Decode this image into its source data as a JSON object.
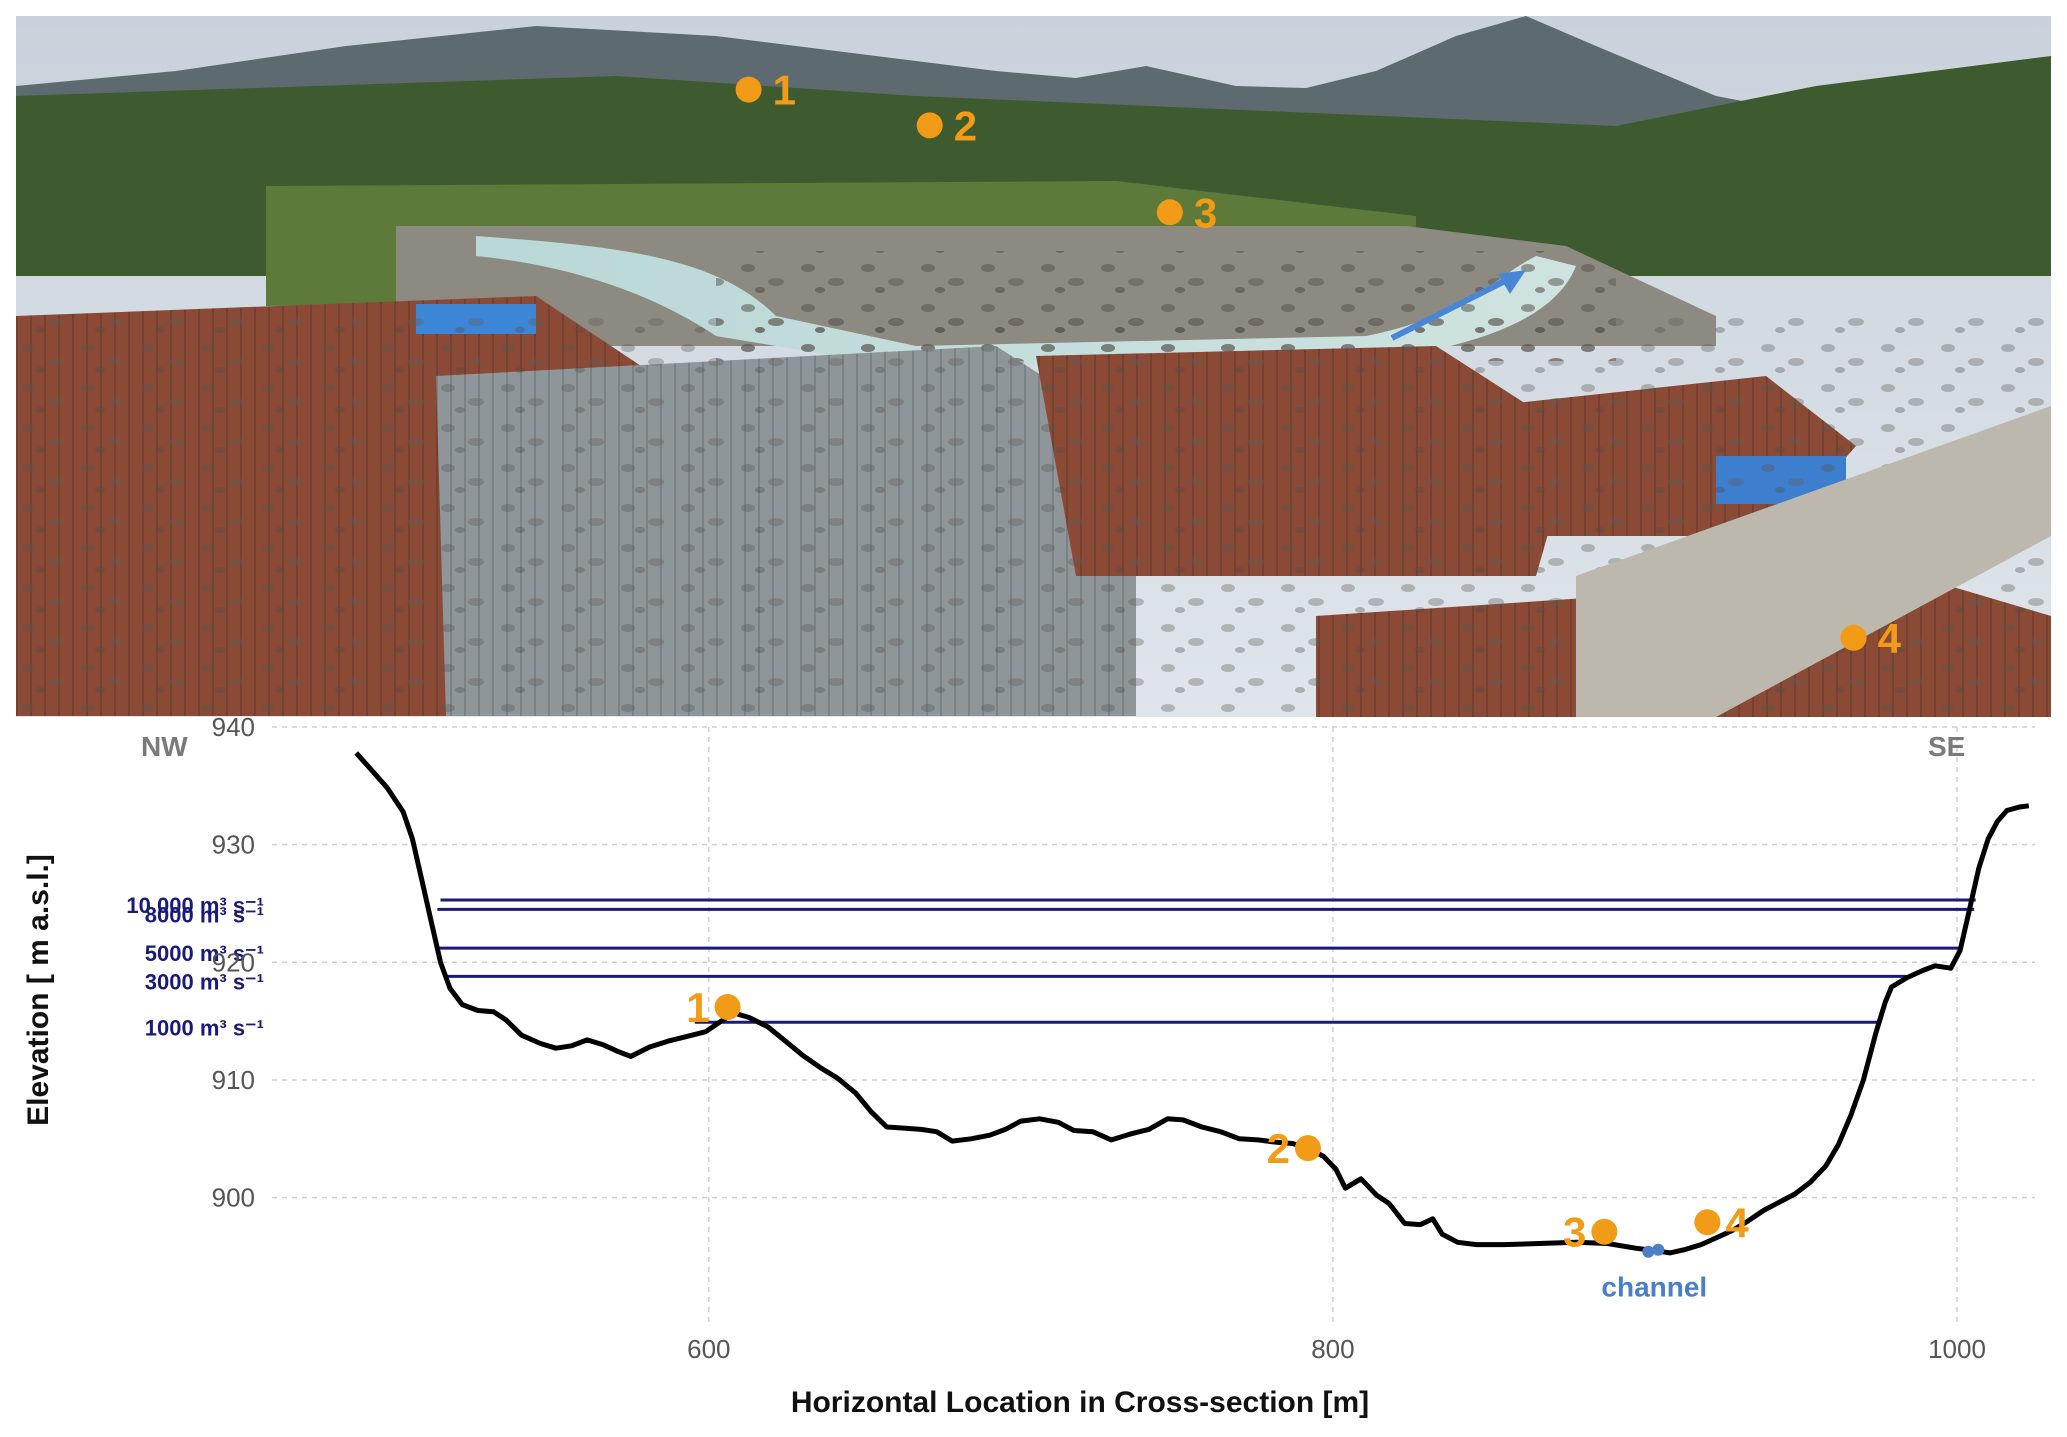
{
  "photo": {
    "markers": [
      {
        "label": "1",
        "u": 0.36,
        "v": 0.105
      },
      {
        "label": "2",
        "u": 0.449,
        "v": 0.156
      },
      {
        "label": "3",
        "u": 0.567,
        "v": 0.28
      },
      {
        "label": "4",
        "u": 0.903,
        "v": 0.887
      }
    ]
  },
  "chart_data": {
    "type": "line",
    "xlabel": "Horizontal Location in Cross-section [m]",
    "ylabel": "Elevation [ m a.s.l.]",
    "xlim": [
      460,
      1025
    ],
    "ylim": [
      889,
      940
    ],
    "xticks": [
      600,
      800,
      1000
    ],
    "yticks": [
      900,
      910,
      920,
      930,
      940
    ],
    "grid": true,
    "direction_labels": {
      "left": "NW",
      "right": "SE"
    },
    "profile": [
      [
        487,
        937.8
      ],
      [
        492,
        936.3
      ],
      [
        497,
        934.8
      ],
      [
        502,
        932.8
      ],
      [
        505,
        930.5
      ],
      [
        508,
        927.0
      ],
      [
        511,
        923.5
      ],
      [
        514,
        920.0
      ],
      [
        517,
        917.8
      ],
      [
        521,
        916.4
      ],
      [
        526,
        915.9
      ],
      [
        531,
        915.8
      ],
      [
        535,
        915.1
      ],
      [
        540,
        913.8
      ],
      [
        546,
        913.1
      ],
      [
        551,
        912.7
      ],
      [
        556,
        912.9
      ],
      [
        561,
        913.4
      ],
      [
        566,
        913.0
      ],
      [
        571,
        912.4
      ],
      [
        575,
        912.0
      ],
      [
        581,
        912.8
      ],
      [
        587,
        913.3
      ],
      [
        593,
        913.7
      ],
      [
        599,
        914.1
      ],
      [
        604,
        915.0
      ],
      [
        608,
        915.7
      ],
      [
        613,
        915.3
      ],
      [
        619,
        914.5
      ],
      [
        625,
        913.2
      ],
      [
        630,
        912.1
      ],
      [
        636,
        911.0
      ],
      [
        641,
        910.2
      ],
      [
        647,
        908.9
      ],
      [
        652,
        907.3
      ],
      [
        657,
        906.0
      ],
      [
        663,
        905.9
      ],
      [
        668,
        905.8
      ],
      [
        673,
        905.6
      ],
      [
        678,
        904.8
      ],
      [
        684,
        905.0
      ],
      [
        690,
        905.3
      ],
      [
        695,
        905.8
      ],
      [
        700,
        906.5
      ],
      [
        706,
        906.7
      ],
      [
        712,
        906.4
      ],
      [
        717,
        905.7
      ],
      [
        723,
        905.6
      ],
      [
        729,
        904.9
      ],
      [
        735,
        905.4
      ],
      [
        741,
        905.8
      ],
      [
        747,
        906.7
      ],
      [
        752,
        906.6
      ],
      [
        758,
        906.0
      ],
      [
        764,
        905.6
      ],
      [
        770,
        905.0
      ],
      [
        776,
        904.9
      ],
      [
        782,
        904.7
      ],
      [
        787,
        904.6
      ],
      [
        792,
        904.2
      ],
      [
        797,
        903.5
      ],
      [
        801,
        902.4
      ],
      [
        804,
        900.8
      ],
      [
        809,
        901.6
      ],
      [
        814,
        900.2
      ],
      [
        818,
        899.5
      ],
      [
        823,
        897.8
      ],
      [
        828,
        897.7
      ],
      [
        832,
        898.2
      ],
      [
        835,
        896.9
      ],
      [
        840,
        896.2
      ],
      [
        846,
        896.0
      ],
      [
        855,
        896.0
      ],
      [
        866,
        896.1
      ],
      [
        878,
        896.2
      ],
      [
        888,
        896.1
      ],
      [
        897,
        895.7
      ],
      [
        903,
        895.5
      ],
      [
        908,
        895.3
      ],
      [
        913,
        895.6
      ],
      [
        918,
        896.0
      ],
      [
        923,
        896.6
      ],
      [
        928,
        897.2
      ],
      [
        933,
        898.0
      ],
      [
        938,
        898.9
      ],
      [
        943,
        899.6
      ],
      [
        948,
        900.3
      ],
      [
        953,
        901.3
      ],
      [
        958,
        902.7
      ],
      [
        962,
        904.5
      ],
      [
        966,
        907.0
      ],
      [
        970,
        910.0
      ],
      [
        974,
        914.0
      ],
      [
        977,
        916.6
      ],
      [
        979,
        917.9
      ],
      [
        984,
        918.7
      ],
      [
        989,
        919.3
      ],
      [
        993,
        919.7
      ],
      [
        998,
        919.5
      ],
      [
        1001,
        921.0
      ],
      [
        1004,
        924.5
      ],
      [
        1007,
        928.0
      ],
      [
        1010,
        930.5
      ],
      [
        1013,
        932.0
      ],
      [
        1016,
        932.9
      ],
      [
        1020,
        933.2
      ],
      [
        1023,
        933.3
      ]
    ],
    "discharge_levels": [
      {
        "label": "10 000 m³ s⁻¹",
        "elevation": 925.3,
        "x_start": 514.0,
        "x_end": 1006.0
      },
      {
        "label": "8000 m³ s⁻¹",
        "elevation": 924.5,
        "x_start": 513.0,
        "x_end": 1005.5
      },
      {
        "label": "5000 m³ s⁻¹",
        "elevation": 921.2,
        "x_start": 513.5,
        "x_end": 1001.5
      },
      {
        "label": "3000 m³ s⁻¹",
        "elevation": 918.8,
        "x_start": 515.5,
        "x_end": 984.0
      },
      {
        "label": "1000 m³ s⁻¹",
        "elevation": 914.9,
        "x_start": 595.5,
        "x_end": 975.5
      }
    ],
    "points": [
      {
        "label": "1",
        "x": 606,
        "y": 916.2
      },
      {
        "label": "2",
        "x": 792,
        "y": 904.2
      },
      {
        "label": "3",
        "x": 887,
        "y": 897.1
      },
      {
        "label": "4",
        "x": 920,
        "y": 897.9
      }
    ],
    "channel": {
      "label": "channel",
      "x": 903,
      "y": 895.4
    }
  }
}
